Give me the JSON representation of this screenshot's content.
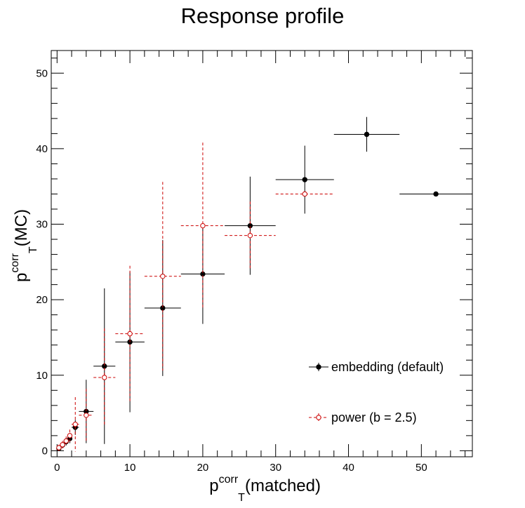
{
  "chart_data": {
    "type": "scatter",
    "title": "Response profile",
    "xlabel": {
      "main": "p",
      "sub": "T",
      "sup": "corr",
      "suffix": "(matched)"
    },
    "ylabel": {
      "main": "p",
      "sub": "T",
      "sup": "corr",
      "suffix": "(MC)"
    },
    "xlim": [
      -0.8,
      57
    ],
    "ylim": [
      -0.8,
      53
    ],
    "xticks": [
      0,
      10,
      20,
      30,
      40,
      50
    ],
    "yticks": [
      0,
      10,
      20,
      30,
      40,
      50
    ],
    "grid": false,
    "legend_position": "bottom-right",
    "series": [
      {
        "name": "embedding (default)",
        "color": "#000000",
        "marker": "filled-circle",
        "line_style": "solid",
        "points": [
          {
            "x": 0.25,
            "y": 0.3,
            "xerr": 0.25,
            "yerr": 0.3
          },
          {
            "x": 0.75,
            "y": 0.75,
            "xerr": 0.25,
            "yerr": 0.4
          },
          {
            "x": 1.25,
            "y": 1.2,
            "xerr": 0.25,
            "yerr": 0.5
          },
          {
            "x": 1.75,
            "y": 1.6,
            "xerr": 0.25,
            "yerr": 0.6
          },
          {
            "x": 2.5,
            "y": 3.1,
            "xerr": 0.5,
            "yerr": 1.0
          },
          {
            "x": 4.0,
            "y": 5.2,
            "xerr": 1.0,
            "yerr": 4.2
          },
          {
            "x": 6.5,
            "y": 11.2,
            "xerr": 1.5,
            "yerr": 10.3
          },
          {
            "x": 10.0,
            "y": 14.4,
            "xerr": 2.0,
            "yerr": 9.3
          },
          {
            "x": 14.5,
            "y": 18.9,
            "xerr": 2.5,
            "yerr": 9.0
          },
          {
            "x": 20.0,
            "y": 23.4,
            "xerr": 3.0,
            "yerr": 6.6
          },
          {
            "x": 26.5,
            "y": 29.8,
            "xerr": 3.5,
            "yerr": 6.5
          },
          {
            "x": 34.0,
            "y": 35.9,
            "xerr": 4.0,
            "yerr": 4.5
          },
          {
            "x": 42.5,
            "y": 41.9,
            "xerr": 4.5,
            "yerr": 2.3
          },
          {
            "x": 52.0,
            "y": 34.0,
            "xerr": 5.0,
            "yerr": 0.0
          }
        ]
      },
      {
        "name": "power (b = 2.5)",
        "color": "#cc0000",
        "marker": "open-circle",
        "line_style": "dashed",
        "points": [
          {
            "x": 0.25,
            "y": 0.4,
            "xerr": 0.25,
            "yerr": 0.4
          },
          {
            "x": 0.75,
            "y": 0.8,
            "xerr": 0.25,
            "yerr": 0.5
          },
          {
            "x": 1.25,
            "y": 1.3,
            "xerr": 0.25,
            "yerr": 0.6
          },
          {
            "x": 1.75,
            "y": 2.0,
            "xerr": 0.25,
            "yerr": 0.8
          },
          {
            "x": 2.5,
            "y": 3.5,
            "xerr": 0.5,
            "yerr": 3.6
          },
          {
            "x": 4.0,
            "y": 4.7,
            "xerr": 1.0,
            "yerr": 3.5
          },
          {
            "x": 6.5,
            "y": 9.7,
            "xerr": 1.5,
            "yerr": 6.5
          },
          {
            "x": 10.0,
            "y": 15.5,
            "xerr": 2.0,
            "yerr": 9.0
          },
          {
            "x": 14.5,
            "y": 23.1,
            "xerr": 2.5,
            "yerr": 12.5
          },
          {
            "x": 20.0,
            "y": 29.8,
            "xerr": 3.0,
            "yerr": 11.0
          },
          {
            "x": 26.5,
            "y": 28.5,
            "xerr": 3.5,
            "yerr": 4.5
          },
          {
            "x": 34.0,
            "y": 34.0,
            "xerr": 4.0,
            "yerr": 0.0
          }
        ]
      }
    ]
  }
}
